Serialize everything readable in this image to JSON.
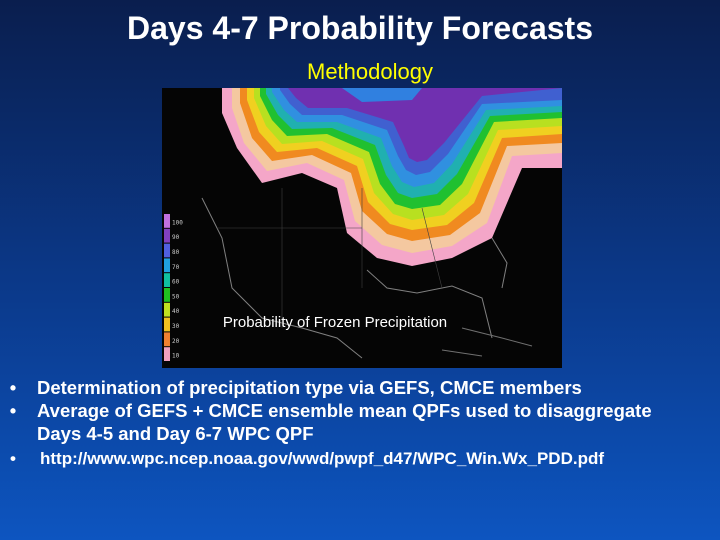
{
  "slide": {
    "title": "Days 4-7 Probability Forecasts",
    "subtitle": "Methodology"
  },
  "map": {
    "caption": "Probability of Frozen Precipitation",
    "legend_labels": [
      "100",
      "90",
      "80",
      "70",
      "60",
      "50",
      "40",
      "30",
      "20",
      "10"
    ],
    "legend_colors": [
      "#c070e0",
      "#8040c0",
      "#5060e0",
      "#20a0e0",
      "#10c0a0",
      "#20c020",
      "#c0e020",
      "#f0c020",
      "#f08030",
      "#f0a0c0"
    ]
  },
  "bullets": {
    "marker": "•",
    "item1": "Determination of precipitation type via GEFS, CMCE members",
    "item2_line1": "Average of GEFS + CMCE ensemble mean QPFs used to disaggregate",
    "item2_line2": "Days 4-5 and Day 6-7 WPC QPF",
    "item3": "http://www.wpc.ncep.noaa.gov/wwd/pwpf_d47/WPC_Win.Wx_PDD.pdf"
  }
}
